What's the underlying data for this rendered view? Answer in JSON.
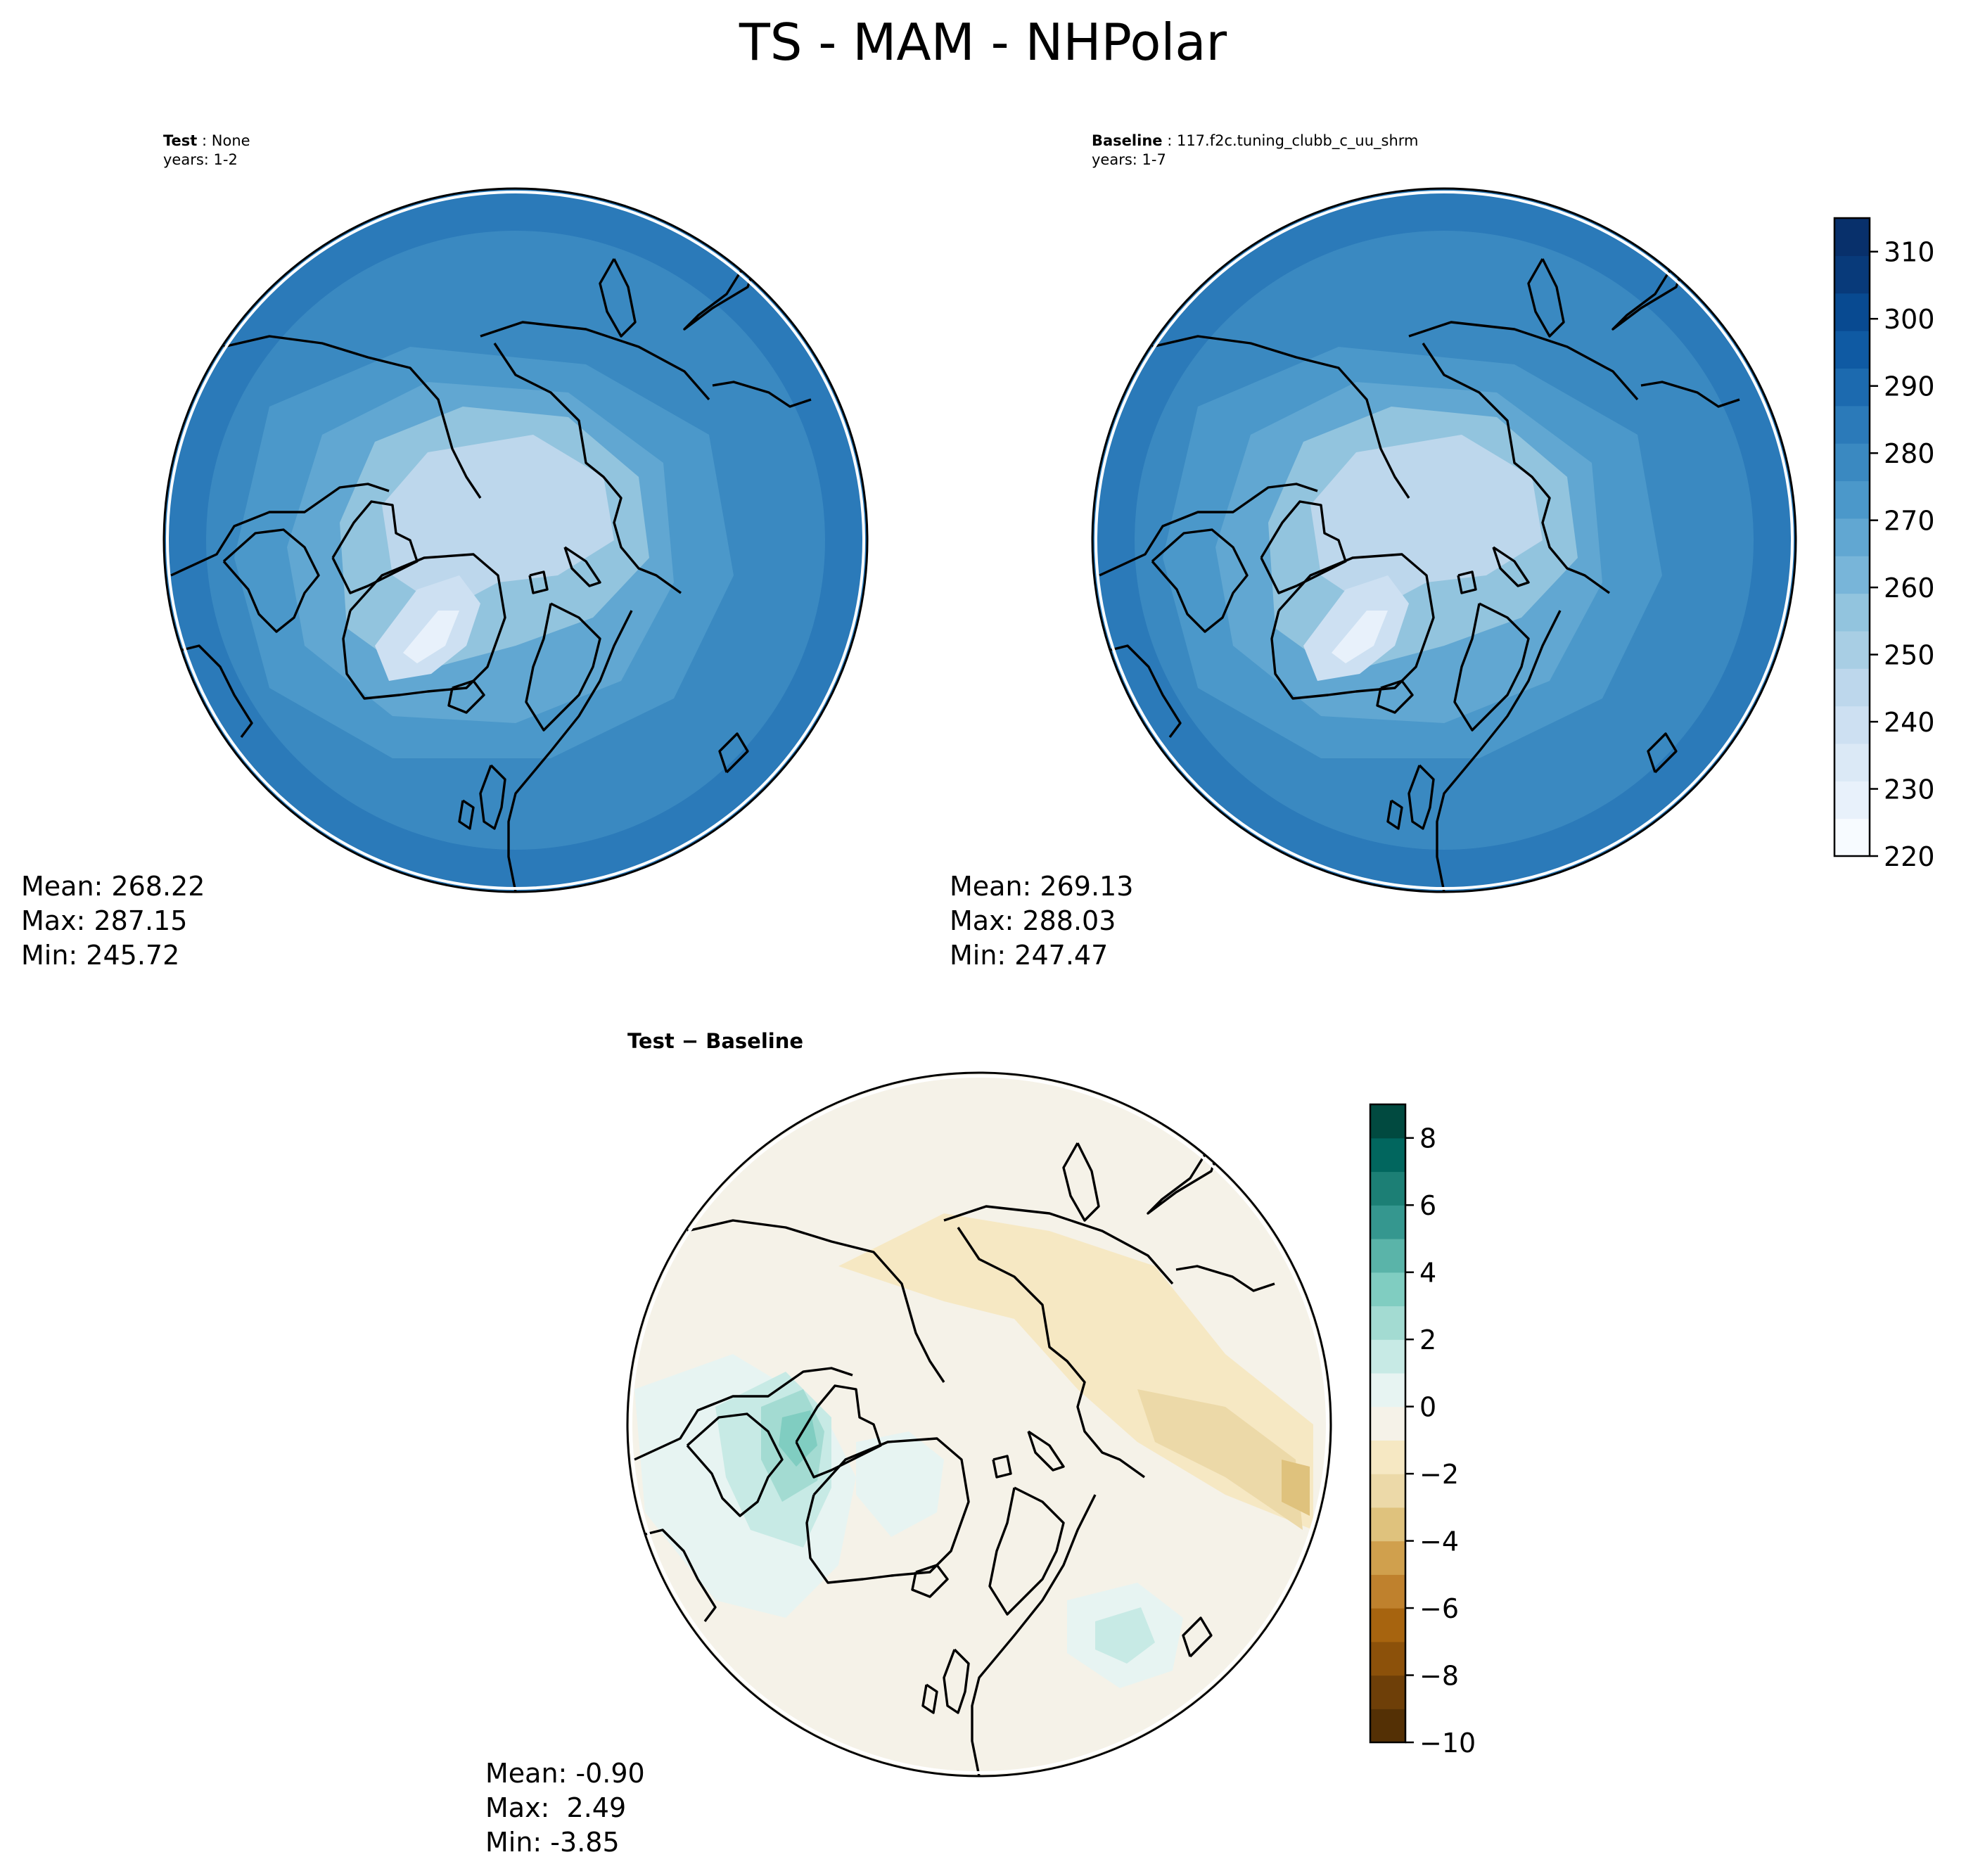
{
  "title": "TS - MAM - NHPolar",
  "colors": {
    "test_cmap": [
      "#f7fbff",
      "#e8f1fb",
      "#dbe9f6",
      "#cde0f2",
      "#bdd7ec",
      "#a8cee4",
      "#92c4de",
      "#78b5d9",
      "#61a7d2",
      "#4b98ca",
      "#3a89c1",
      "#2b7ab9",
      "#1c6aaf",
      "#0f5aa3",
      "#084a91",
      "#083a7a",
      "#08306b"
    ],
    "diff_cmap": [
      "#543005",
      "#6e3f08",
      "#8c510a",
      "#a7640f",
      "#bf812d",
      "#d0a04d",
      "#dfc27d",
      "#ecd9a8",
      "#f6e8c3",
      "#f5f2e8",
      "#e7f4f2",
      "#c7eae5",
      "#a3dbd2",
      "#80cdc1",
      "#5ab4a9",
      "#35978f",
      "#1c7f75",
      "#01665e",
      "#014a40"
    ],
    "coast": "#000000"
  },
  "panels": {
    "test": {
      "label": "Test",
      "name": "None",
      "years": "years: 1-2",
      "mean": "Mean: 268.22",
      "max": "Max: 287.15",
      "min": "Min: 245.72"
    },
    "baseline": {
      "label": "Baseline",
      "name": "117.f2c.tuning_clubb_c_uu_shrm",
      "years": "years: 1-7",
      "mean": "Mean: 269.13",
      "max": "Max: 288.03",
      "min": "Min: 247.47"
    },
    "diff": {
      "label": "Test",
      "label2": "Baseline",
      "mean": "Mean: -0.90",
      "max": "Max:  2.49",
      "min": "Min: -3.85"
    }
  },
  "chart_data": [
    {
      "type": "heatmap",
      "projection": "north-polar-stereographic",
      "title": "Test : None",
      "subtitle": "years: 1-2",
      "colorbar": {
        "range": [
          220,
          315
        ],
        "ticks": [
          220,
          230,
          240,
          250,
          260,
          270,
          280,
          290,
          300,
          310
        ],
        "shared_with": "Baseline"
      },
      "stats": {
        "mean": 268.22,
        "max": 287.15,
        "min": 245.72
      }
    },
    {
      "type": "heatmap",
      "projection": "north-polar-stereographic",
      "title": "Baseline : 117.f2c.tuning_clubb_c_uu_shrm",
      "subtitle": "years: 1-7",
      "colorbar": {
        "range": [
          220,
          315
        ],
        "ticks": [
          220,
          230,
          240,
          250,
          260,
          270,
          280,
          290,
          300,
          310
        ]
      },
      "stats": {
        "mean": 269.13,
        "max": 288.03,
        "min": 247.47
      }
    },
    {
      "type": "heatmap",
      "projection": "north-polar-stereographic",
      "title": "Test − Baseline",
      "colorbar": {
        "range": [
          -10,
          9
        ],
        "ticks": [
          "−10",
          "−8",
          "−6",
          "−4",
          "−2",
          "0",
          "2",
          "4",
          "6",
          "8"
        ]
      },
      "stats": {
        "mean": -0.9,
        "max": 2.49,
        "min": -3.85
      }
    }
  ]
}
